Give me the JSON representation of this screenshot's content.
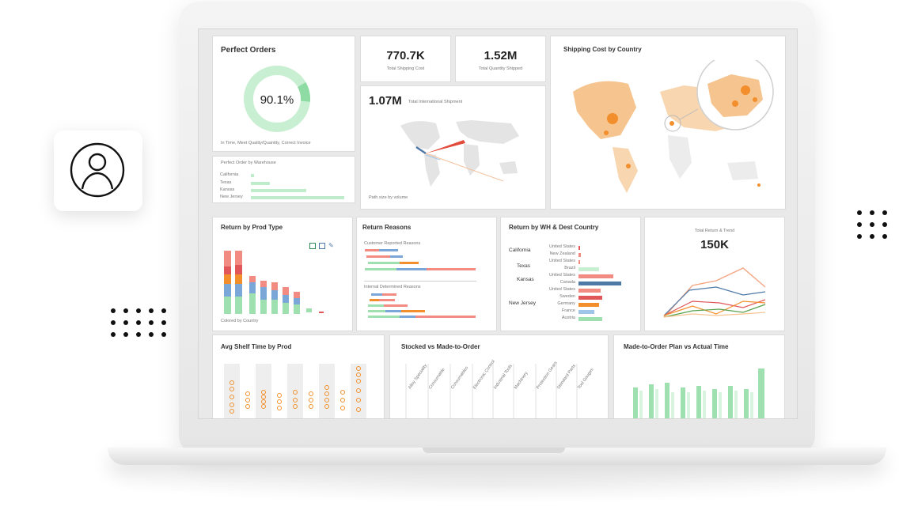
{
  "cards": {
    "perfect_orders": {
      "title": "Perfect Orders",
      "value": "90.1%",
      "caption": "In Time, Meet Quality/Quantity, Correct Invoice",
      "ring_fraction": 0.901
    },
    "perfect_by_wh": {
      "title": "Perfect Order by Warehouse",
      "rows": [
        {
          "label": "California",
          "value": 0.04
        },
        {
          "label": "Texas",
          "value": 0.07
        },
        {
          "label": "Kansas",
          "value": 0.6
        },
        {
          "label": "New Jersey",
          "value": 1.0
        }
      ]
    },
    "total_shipping": {
      "value": "770.7K",
      "label": "Total Shipping Cost"
    },
    "total_quantity": {
      "value": "1.52M",
      "label": "Total Quantity Shipped"
    },
    "intl_shipment": {
      "value": "1.07M",
      "label": "Total International Shipment",
      "caption": "Path size by volume"
    },
    "shipping_by_country": {
      "title": "Shipping Cost by Country"
    },
    "return_prod": {
      "title": "Return by Prod Type",
      "caption": "Colored by Country"
    },
    "return_reasons": {
      "title": "Return Reasons",
      "group1": "Customer Reported Reasons",
      "group2": "Internal Determined Reasons"
    },
    "return_wh": {
      "title": "Return by WH & Dest Country",
      "groups": [
        "California",
        "Texas",
        "Kansas",
        "New Jersey"
      ],
      "countries": [
        "United States",
        "New Zealand",
        "United States",
        "Brazil",
        "United States",
        "Canada",
        "United States",
        "Sweden",
        "Germany",
        "France",
        "Austria"
      ]
    },
    "total_return": {
      "label": "Total Return & Trend",
      "value": "150K"
    },
    "avg_shelf": {
      "title": "Avg Shelf Time by Prod"
    },
    "stocked": {
      "title": "Stocked vs Made-to-Order",
      "categories": [
        "Alloy Speciality",
        "Consumable",
        "Consumables",
        "Electronic Control",
        "Industrial Tools",
        "Machinery",
        "Protection Gears",
        "Standard Parts",
        "Tool Gauges"
      ]
    },
    "plan_vs_actual": {
      "title": "Made-to-Order Plan vs Actual Time"
    }
  },
  "icons": [
    "user-avatar-icon",
    "save-icon",
    "window-icon",
    "edit-icon"
  ],
  "colors": {
    "green": "#9fe0b0",
    "orange": "#f28e2b",
    "red": "#e15759",
    "blue": "#4e79a7",
    "map_fill": "#f6c48f"
  }
}
